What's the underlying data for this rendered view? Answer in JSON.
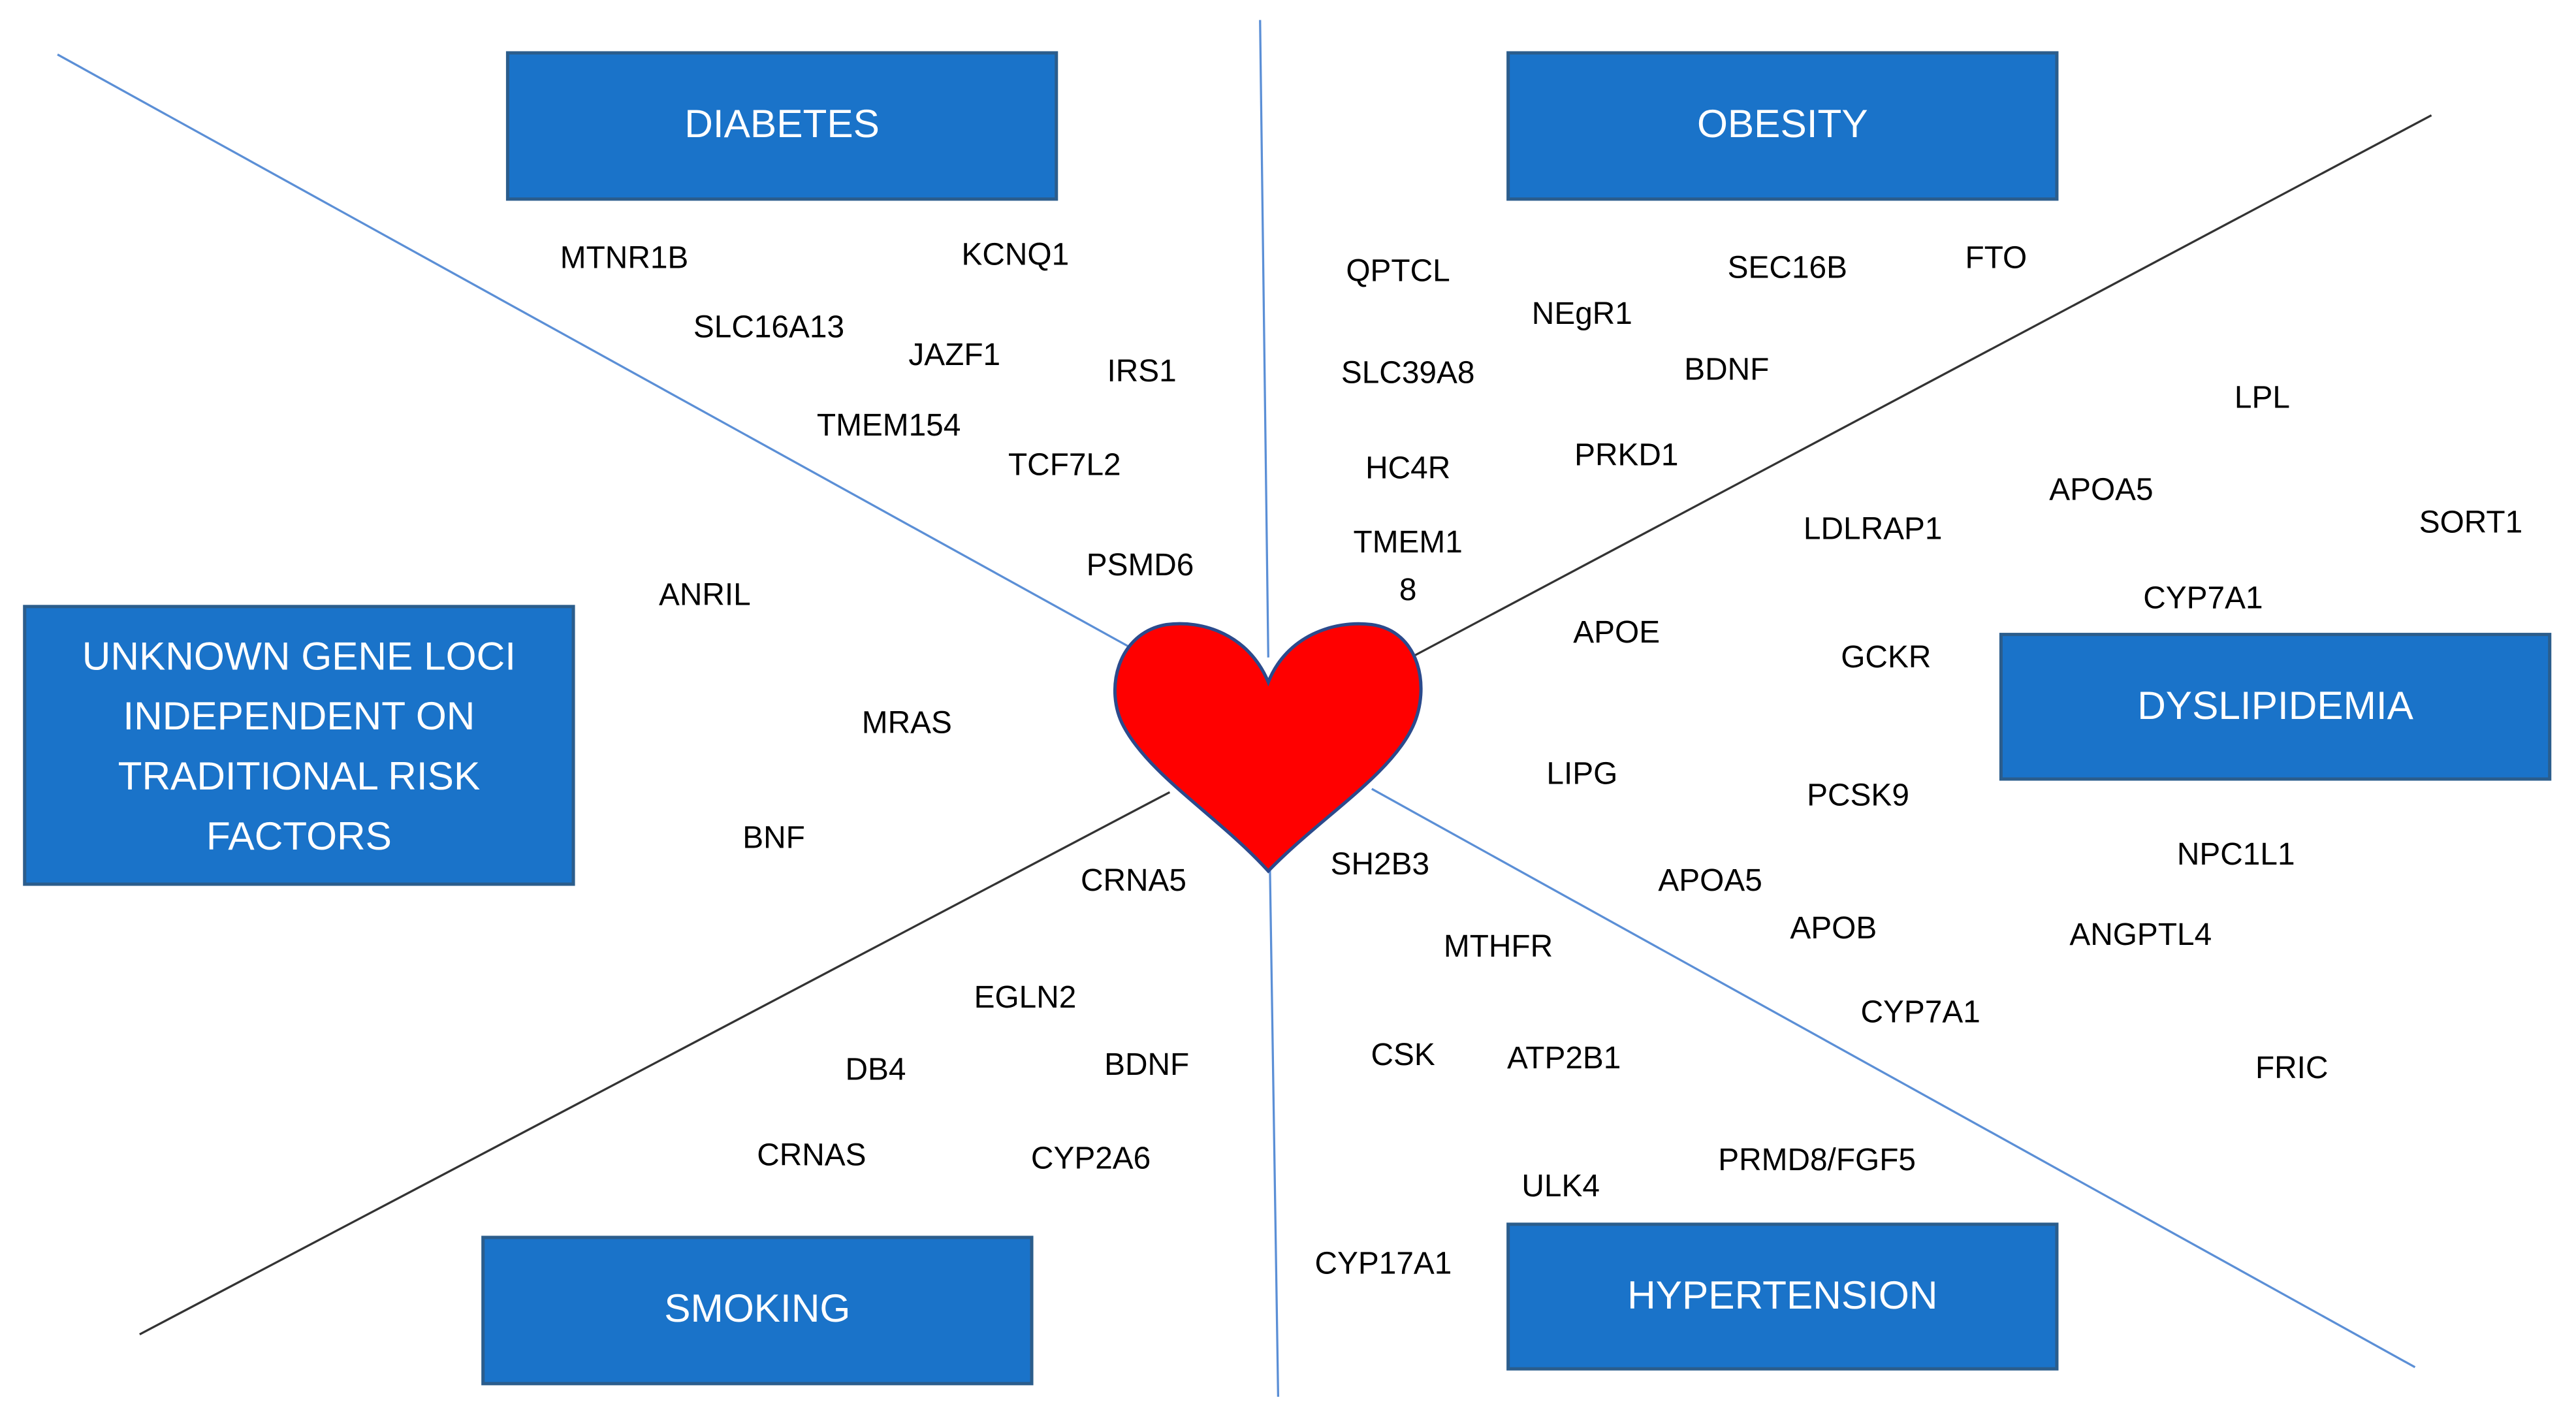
{
  "groups": [
    {
      "label": [
        "DIABETES"
      ],
      "genes": [
        "MTNR1B",
        "KCNQ1",
        "SLC16A13",
        "JAZF1",
        "IRS1",
        "TMEM154",
        "TCF7L2",
        "PSMD6"
      ]
    },
    {
      "label": [
        "OBESITY"
      ],
      "genes": [
        "QPTCL",
        "NEgR1",
        "SEC16B",
        "FTO",
        "SLC39A8",
        "BDNF",
        "HC4R",
        "PRKD1",
        [
          "TMEM1",
          "8"
        ]
      ]
    },
    {
      "label": [
        "DYSLIPIDEMIA"
      ],
      "genes": [
        "LPL",
        "APOA5",
        "SORT1",
        "LDLRAP1",
        "CYP7A1",
        "APOE",
        "GCKR",
        "LIPG",
        "PCSK9",
        "NPC1L1",
        "APOA5",
        "APOB",
        "ANGPTL4",
        "CYP7A1",
        "FRIC"
      ]
    },
    {
      "label": [
        "HYPERTENSION"
      ],
      "genes": [
        "SH2B3",
        "MTHFR",
        "CSK",
        "ATP2B1",
        "ULK4",
        "PRMD8/FGF5",
        "CYP17A1"
      ]
    },
    {
      "label": [
        "SMOKING"
      ],
      "genes": [
        "CRNA5",
        "EGLN2",
        "DB4",
        "BDNF",
        "CRNAS",
        "CYP2A6"
      ]
    },
    {
      "label": [
        "UNKNOWN GENE LOCI",
        "INDEPENDENT ON",
        "TRADITIONAL RISK",
        "FACTORS"
      ],
      "genes": [
        "ANRIL",
        "MRAS",
        "BNF"
      ]
    }
  ]
}
